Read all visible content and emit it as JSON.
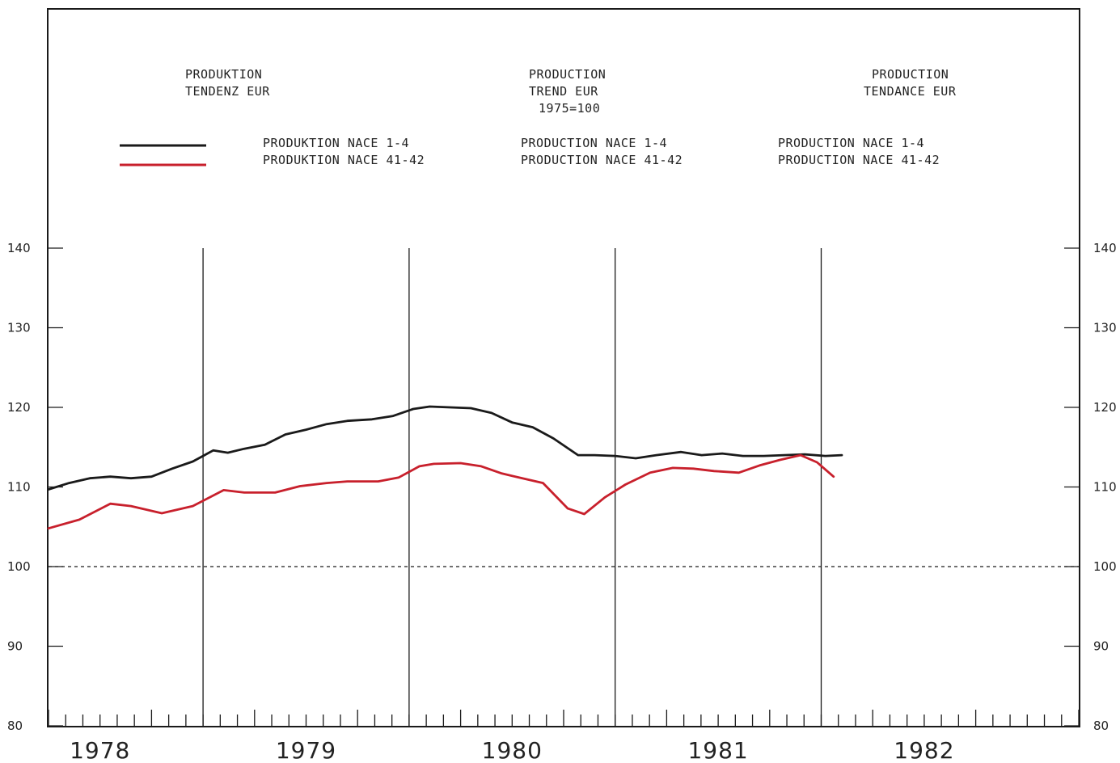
{
  "header": {
    "german": [
      "PRODUKTION",
      "TENDENZ EUR"
    ],
    "english": [
      "PRODUCTION",
      "TREND EUR",
      "1975=100"
    ],
    "french": [
      "PRODUCTION",
      "TENDANCE EUR"
    ]
  },
  "legend": {
    "german": [
      "PRODUKTION NACE 1-4",
      "PRODUKTION NACE 41-42"
    ],
    "english": [
      "PRODUCTION NACE 1-4",
      "PRODUCTION NACE 41-42"
    ],
    "french": [
      "PRODUCTION NACE 1-4",
      "PRODUCTION NACE 41-42"
    ]
  },
  "chart_data": {
    "type": "line",
    "ylim": [
      80,
      140
    ],
    "yticks": [
      80,
      90,
      100,
      110,
      120,
      130,
      140
    ],
    "year_labels": [
      "1978",
      "1979",
      "1980",
      "1981",
      "1982"
    ],
    "xlim": [
      1977.75,
      1982.75
    ],
    "reference_line": 100,
    "series": [
      {
        "color": "#1a1a1a",
        "points": [
          [
            1977.75,
            109.7
          ],
          [
            1977.85,
            110.5
          ],
          [
            1977.95,
            111.1
          ],
          [
            1978.05,
            111.3
          ],
          [
            1978.15,
            111.1
          ],
          [
            1978.25,
            111.3
          ],
          [
            1978.35,
            112.3
          ],
          [
            1978.45,
            113.2
          ],
          [
            1978.55,
            114.6
          ],
          [
            1978.62,
            114.3
          ],
          [
            1978.7,
            114.8
          ],
          [
            1978.8,
            115.3
          ],
          [
            1978.9,
            116.6
          ],
          [
            1979.0,
            117.2
          ],
          [
            1979.1,
            117.9
          ],
          [
            1979.2,
            118.3
          ],
          [
            1979.32,
            118.5
          ],
          [
            1979.42,
            118.9
          ],
          [
            1979.52,
            119.8
          ],
          [
            1979.6,
            120.1
          ],
          [
            1979.7,
            120.0
          ],
          [
            1979.8,
            119.9
          ],
          [
            1979.9,
            119.3
          ],
          [
            1980.0,
            118.1
          ],
          [
            1980.1,
            117.5
          ],
          [
            1980.2,
            116.1
          ],
          [
            1980.32,
            114.0
          ],
          [
            1980.4,
            114.0
          ],
          [
            1980.5,
            113.9
          ],
          [
            1980.6,
            113.6
          ],
          [
            1980.7,
            114.0
          ],
          [
            1980.82,
            114.4
          ],
          [
            1980.92,
            114.0
          ],
          [
            1981.02,
            114.2
          ],
          [
            1981.12,
            113.9
          ],
          [
            1981.22,
            113.9
          ],
          [
            1981.32,
            114.0
          ],
          [
            1981.42,
            114.1
          ],
          [
            1981.52,
            113.9
          ],
          [
            1981.6,
            114.0
          ]
        ]
      },
      {
        "color": "#c8202c",
        "points": [
          [
            1977.75,
            104.8
          ],
          [
            1977.9,
            105.9
          ],
          [
            1978.05,
            107.9
          ],
          [
            1978.15,
            107.6
          ],
          [
            1978.3,
            106.7
          ],
          [
            1978.45,
            107.6
          ],
          [
            1978.6,
            109.6
          ],
          [
            1978.7,
            109.3
          ],
          [
            1978.85,
            109.3
          ],
          [
            1978.97,
            110.1
          ],
          [
            1979.1,
            110.5
          ],
          [
            1979.2,
            110.7
          ],
          [
            1979.35,
            110.7
          ],
          [
            1979.45,
            111.2
          ],
          [
            1979.55,
            112.6
          ],
          [
            1979.62,
            112.9
          ],
          [
            1979.75,
            113.0
          ],
          [
            1979.85,
            112.6
          ],
          [
            1979.95,
            111.7
          ],
          [
            1980.05,
            111.1
          ],
          [
            1980.15,
            110.5
          ],
          [
            1980.27,
            107.3
          ],
          [
            1980.35,
            106.6
          ],
          [
            1980.45,
            108.7
          ],
          [
            1980.55,
            110.3
          ],
          [
            1980.67,
            111.8
          ],
          [
            1980.78,
            112.4
          ],
          [
            1980.88,
            112.3
          ],
          [
            1980.98,
            112.0
          ],
          [
            1981.1,
            111.8
          ],
          [
            1981.2,
            112.7
          ],
          [
            1981.3,
            113.4
          ],
          [
            1981.4,
            114.0
          ],
          [
            1981.48,
            113.1
          ],
          [
            1981.56,
            111.3
          ]
        ]
      }
    ]
  }
}
